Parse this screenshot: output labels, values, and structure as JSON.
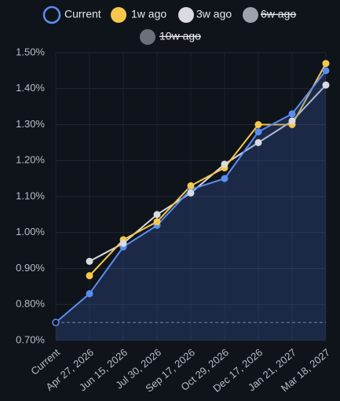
{
  "chart_data": {
    "type": "line",
    "categories": [
      "Current",
      "Apr 27, 2026",
      "Jun 15, 2026",
      "Jul 30, 2026",
      "Sep 17, 2026",
      "Oct 29, 2026",
      "Dec 17, 2026",
      "Jan 21, 2027",
      "Mar 18, 2027"
    ],
    "series": [
      {
        "name": "Current",
        "color": "#5b8def",
        "area": true,
        "values": [
          0.75,
          0.83,
          0.96,
          1.02,
          1.12,
          1.15,
          1.28,
          1.33,
          1.45
        ]
      },
      {
        "name": "1w ago",
        "color": "#f5c84c",
        "values": [
          null,
          0.88,
          0.98,
          1.03,
          1.13,
          1.18,
          1.3,
          1.3,
          1.47
        ]
      },
      {
        "name": "3w ago",
        "color": "#d9dbe0",
        "values": [
          null,
          0.92,
          0.97,
          1.05,
          1.11,
          1.19,
          1.25,
          1.31,
          1.41
        ]
      },
      {
        "name": "6w ago",
        "color": "#9ea3ab",
        "hidden": true
      },
      {
        "name": "10w ago",
        "color": "#6b7079",
        "hidden": true
      }
    ],
    "ylim": [
      0.7,
      1.5
    ],
    "yticks": [
      {
        "value": 0.7,
        "label": "0.70%"
      },
      {
        "value": 0.8,
        "label": "0.80%"
      },
      {
        "value": 0.9,
        "label": "0.90%"
      },
      {
        "value": 1.0,
        "label": "1.00%"
      },
      {
        "value": 1.1,
        "label": "1.10%"
      },
      {
        "value": 1.2,
        "label": "1.20%"
      },
      {
        "value": 1.3,
        "label": "1.30%"
      },
      {
        "value": 1.4,
        "label": "1.40%"
      },
      {
        "value": 1.5,
        "label": "1.50%"
      }
    ],
    "grid": true
  }
}
